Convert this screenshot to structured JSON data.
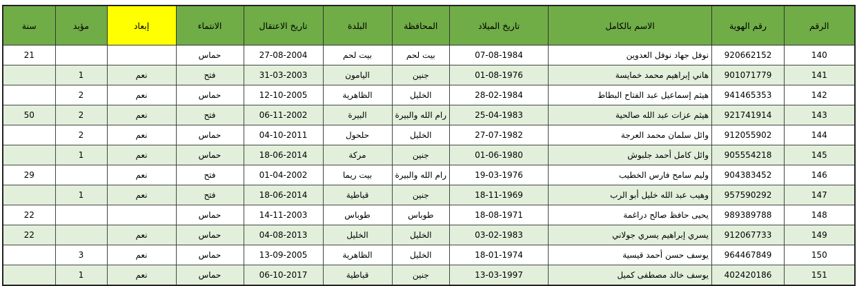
{
  "colors": {
    "header": "#70ad47",
    "highlight_header": "#ffff00",
    "alt_row": "#e2efda"
  },
  "headers": [
    "الرقم",
    "رقم الهوية",
    "الاسم بالكامل",
    "تاريخ الميلاد",
    "المحافظة",
    "البلدة",
    "تاريخ الاعتقال",
    "الانتماء",
    "إبعاد",
    "مؤبد",
    "سنة"
  ],
  "rows": [
    [
      "140",
      "920662152",
      "نوفل جهاد نوفل العدوين",
      "07-08-1984",
      "بيت لحم",
      "بيت لحم",
      "27-08-2004",
      "حماس",
      "",
      "",
      "21"
    ],
    [
      "141",
      "901071779",
      "هاني إبراهيم محمد خمايسة",
      "01-08-1976",
      "جنين",
      "اليامون",
      "31-03-2003",
      "فتح",
      "نعم",
      "1",
      ""
    ],
    [
      "142",
      "941465353",
      "هيثم إسماعيل عبد الفتاح البطاط",
      "28-02-1984",
      "الخليل",
      "الظاهرية",
      "12-10-2005",
      "حماس",
      "نعم",
      "2",
      ""
    ],
    [
      "143",
      "921741914",
      "هيثم عزات عبد الله صالحية",
      "25-04-1983",
      "رام الله والبيرة",
      "البيرة",
      "06-11-2002",
      "فتح",
      "نعم",
      "2",
      "50"
    ],
    [
      "144",
      "912055902",
      "وائل سلمان محمد العرجة",
      "27-07-1982",
      "الخليل",
      "حلحول",
      "04-10-2011",
      "حماس",
      "نعم",
      "2",
      ""
    ],
    [
      "145",
      "905554218",
      "وائل كامل أحمد جلبوش",
      "01-06-1980",
      "جنين",
      "مركة",
      "18-06-2014",
      "حماس",
      "نعم",
      "1",
      ""
    ],
    [
      "146",
      "904383452",
      "وليم سامح فارس الخطيب",
      "19-03-1976",
      "رام الله والبيرة",
      "بيت ريما",
      "01-04-2002",
      "فتح",
      "نعم",
      "",
      "29"
    ],
    [
      "147",
      "957590292",
      "وهيب عبد الله خليل أبو الرب",
      "18-11-1969",
      "جنين",
      "قباطية",
      "18-06-2014",
      "فتح",
      "نعم",
      "1",
      ""
    ],
    [
      "148",
      "989389788",
      "يحيى حافظ صالح دراغمة",
      "18-08-1971",
      "طوباس",
      "طوباس",
      "14-11-2003",
      "حماس",
      "",
      "",
      "22"
    ],
    [
      "149",
      "912067733",
      "يسري إبراهيم يسري جولاني",
      "03-02-1983",
      "الخليل",
      "الخليل",
      "04-08-2013",
      "حماس",
      "نعم",
      "",
      "22"
    ],
    [
      "150",
      "964467849",
      "يوسف حسن أحمد قيسية",
      "18-01-1974",
      "الخليل",
      "الظاهرية",
      "13-09-2005",
      "حماس",
      "نعم",
      "3",
      ""
    ],
    [
      "151",
      "402420186",
      "يوسف خالد مصطفى كميل",
      "13-03-1997",
      "جنين",
      "قباطية",
      "06-10-2017",
      "حماس",
      "نعم",
      "1",
      ""
    ]
  ]
}
